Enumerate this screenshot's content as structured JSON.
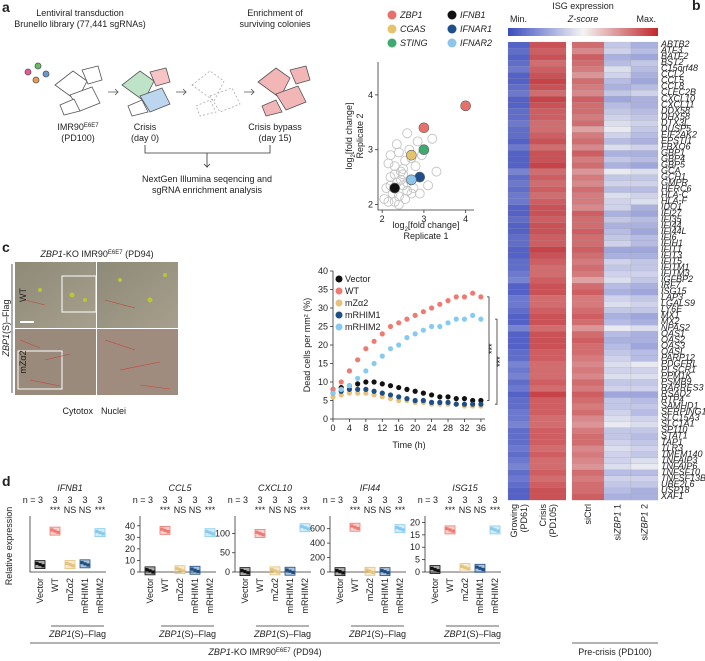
{
  "panel_labels": [
    "a",
    "b",
    "c",
    "d"
  ],
  "a": {
    "left_title": [
      "Lentiviral transduction",
      "Brunello library (77,441 sgRNAs)"
    ],
    "right_title": [
      "Enrichment of",
      "surviving colonies"
    ],
    "stages": [
      [
        [
          {
            "t": "IMR90"
          },
          {
            "t": "E6E7",
            "s": "sup"
          }
        ],
        [
          {
            "t": "(PD100)"
          }
        ]
      ],
      [
        [
          {
            "t": "Crisis"
          }
        ],
        [
          {
            "t": "(day 0)"
          }
        ]
      ],
      [
        [
          {
            "t": "Crisis bypass"
          }
        ],
        [
          {
            "t": "(day 15)"
          }
        ]
      ]
    ],
    "bottom_text": [
      "NextGen Illumina seqencing and",
      "sgRNA enrichment analysis"
    ],
    "scatter": {
      "type": "scatter",
      "xlabel": [
        [
          {
            "t": "log"
          },
          {
            "t": "2",
            "s": "sub"
          },
          {
            "t": "[fold change]"
          }
        ],
        [
          {
            "t": "Replicate 1"
          }
        ]
      ],
      "ylabel": [
        [
          {
            "t": "log"
          },
          {
            "t": "2",
            "s": "sub"
          },
          {
            "t": "[fold change]"
          }
        ],
        [
          {
            "t": "Replicate 2"
          }
        ]
      ],
      "xlim": [
        1.9,
        4.2
      ],
      "ylim": [
        1.9,
        4.6
      ],
      "xticks": [
        2,
        3,
        4
      ],
      "yticks": [
        2,
        3,
        4
      ],
      "background": {
        "color": "#c4c4c4",
        "x": [
          2.05,
          2.1,
          2.15,
          2.2,
          2.25,
          2.3,
          2.35,
          2.4,
          2.45,
          2.5,
          2.55,
          2.6,
          2.2,
          2.3,
          2.4,
          2.5,
          2.6,
          2.7,
          2.8,
          2.15,
          2.35,
          2.45,
          2.55,
          2.65,
          2.75,
          2.3,
          2.5,
          2.7,
          2.9,
          3.1,
          3.2,
          2.6,
          2.4,
          2.2,
          3.3,
          2.85,
          2.95
        ],
        "values": [
          2.1,
          2.3,
          2.05,
          2.5,
          2.2,
          2.7,
          2.4,
          2.15,
          2.6,
          2.35,
          2.8,
          2.25,
          2.9,
          2.05,
          2.95,
          2.55,
          2.4,
          2.2,
          2.7,
          2.75,
          3.1,
          2.45,
          2.1,
          3.0,
          2.3,
          2.55,
          2.65,
          2.85,
          2.2,
          2.35,
          3.2,
          3.3,
          2.0,
          2.35,
          2.6,
          3.15,
          2.9
        ]
      },
      "series": [
        {
          "name": "ZBP1",
          "color": "#e8706a",
          "x": [
            3.0,
            4.0
          ],
          "values": [
            3.4,
            3.8
          ]
        },
        {
          "name": "CGAS",
          "color": "#e6c36a",
          "x": [
            2.7
          ],
          "values": [
            2.9
          ]
        },
        {
          "name": "STING",
          "color": "#3daa6e",
          "x": [
            3.0
          ],
          "values": [
            3.0
          ]
        },
        {
          "name": "IFNB1",
          "color": "#111111",
          "x": [
            2.3
          ],
          "values": [
            2.3
          ]
        },
        {
          "name": "IFNAR1",
          "color": "#1f4e8c",
          "x": [
            2.9
          ],
          "values": [
            2.5
          ]
        },
        {
          "name": "IFNAR2",
          "color": "#8cc4ea",
          "x": [
            2.7
          ],
          "values": [
            2.45
          ]
        }
      ]
    }
  },
  "b": {
    "title": "ISG  expression",
    "scale_labels": [
      "Min.",
      "Z-score",
      "Max."
    ],
    "zlim": [
      -1.5,
      1.5
    ],
    "colors": [
      "#3b4cc0",
      "#f4f4f4",
      "#c0282d"
    ],
    "columns": [
      [
        [
          {
            "t": "Growing"
          }
        ],
        [
          {
            "t": "(PD61)"
          }
        ]
      ],
      [
        [
          {
            "t": "Crisis"
          }
        ],
        [
          {
            "t": "(PD105)"
          }
        ]
      ],
      [
        [
          {
            "t": "siCtrl"
          }
        ]
      ],
      [
        [
          {
            "t": "si"
          },
          {
            "t": "ZBP1",
            "s": "i"
          },
          {
            "t": " 1"
          }
        ]
      ],
      [
        [
          {
            "t": "si"
          },
          {
            "t": "ZBP1",
            "s": "i"
          },
          {
            "t": " 2"
          }
        ]
      ]
    ],
    "group_label": "Pre-crisis (PD100)",
    "genes": [
      "ABTB2",
      "ATF3",
      "BATF2",
      "BST2",
      "C15orf48",
      "CCL2",
      "CCL5",
      "CCL8",
      "CLEC2B",
      "CXCL10",
      "CXCL11",
      "DDX58",
      "DHX58",
      "DTX3L",
      "DUSP5",
      "EIF2AK2",
      "EPSTI1",
      "FBXO6",
      "GBP1",
      "GBP4",
      "GBP5",
      "GCA",
      "GCH1",
      "GMPR",
      "HERC6",
      "HLA-C",
      "HLA-F",
      "IDO1",
      "IFI27",
      "IFI35",
      "IFI44",
      "IFI44L",
      "IFI6",
      "IFIH1",
      "IFIT1",
      "IFIT3",
      "IFIT5",
      "IFITM1",
      "IFITM3",
      "IGFBP2",
      "IRF7",
      "ISG15",
      "LAP3",
      "LGALS9",
      "LY6E",
      "MX1",
      "MX2",
      "NPAS2",
      "OAS1",
      "OAS2",
      "OAS3",
      "OASL",
      "PARP12",
      "PDGFRL",
      "PLSCR1",
      "PPM1K",
      "PSMB9",
      "RARRES3",
      "RSAD2",
      "RTP4",
      "SAMHD1",
      "SERPING1",
      "SLC15A3",
      "SLC1A1",
      "SP110",
      "STAT1",
      "TAP1",
      "TLR3",
      "TMEM140",
      "TNFAIP3",
      "TNFAIP6",
      "TNFSF10",
      "TNFSF13B",
      "UBE2L6",
      "USP18",
      "XAF1"
    ],
    "values": [
      [
        -1.3,
        1.2,
        1.0,
        -0.4,
        -0.6
      ],
      [
        -1.2,
        1.1,
        0.8,
        -0.3,
        -0.5
      ],
      [
        -1.3,
        1.2,
        1.1,
        -0.6,
        -0.7
      ],
      [
        -1.2,
        1.0,
        1.0,
        -0.5,
        -0.4
      ],
      [
        -1.1,
        1.1,
        0.9,
        -0.2,
        -0.5
      ],
      [
        -1.3,
        1.2,
        0.7,
        -0.3,
        -0.6
      ],
      [
        -1.3,
        1.3,
        1.0,
        -0.5,
        -0.7
      ],
      [
        -1.2,
        1.2,
        0.9,
        -0.6,
        -0.5
      ],
      [
        -1.1,
        1.0,
        0.8,
        -0.4,
        -0.3
      ],
      [
        -1.3,
        1.3,
        1.1,
        -0.7,
        -0.6
      ],
      [
        -1.3,
        1.2,
        1.0,
        -0.5,
        -0.6
      ],
      [
        -1.2,
        1.1,
        1.0,
        -0.4,
        -0.5
      ],
      [
        -1.2,
        1.1,
        0.9,
        -0.3,
        -0.4
      ],
      [
        -1.1,
        1.0,
        1.0,
        -0.2,
        -0.3
      ],
      [
        -1.2,
        1.0,
        0.6,
        -0.1,
        -0.4
      ],
      [
        -1.2,
        1.1,
        0.9,
        -0.3,
        -0.5
      ],
      [
        -1.3,
        1.2,
        1.0,
        -0.5,
        -0.6
      ],
      [
        -1.1,
        1.0,
        0.8,
        -0.2,
        -0.3
      ],
      [
        -1.3,
        1.2,
        1.1,
        -0.6,
        -0.6
      ],
      [
        -1.3,
        1.2,
        0.9,
        -0.4,
        -0.5
      ],
      [
        -1.3,
        1.3,
        1.0,
        -0.6,
        -0.7
      ],
      [
        -1.0,
        1.0,
        0.7,
        -0.1,
        -0.2
      ],
      [
        -1.2,
        1.1,
        0.9,
        -0.4,
        -0.4
      ],
      [
        -1.1,
        1.0,
        0.8,
        -0.3,
        -0.3
      ],
      [
        -1.2,
        1.1,
        1.0,
        -0.5,
        -0.5
      ],
      [
        -1.1,
        1.0,
        0.9,
        -0.2,
        -0.3
      ],
      [
        -1.1,
        1.1,
        0.9,
        -0.3,
        -0.2
      ],
      [
        -1.3,
        1.2,
        0.8,
        -0.3,
        -0.6
      ],
      [
        -1.3,
        1.2,
        1.1,
        -0.6,
        -0.7
      ],
      [
        -1.2,
        1.1,
        1.0,
        -0.4,
        -0.5
      ],
      [
        -1.3,
        1.2,
        1.0,
        -0.6,
        -0.6
      ],
      [
        -1.3,
        1.2,
        1.1,
        -0.5,
        -0.7
      ],
      [
        -1.2,
        1.1,
        1.0,
        -0.4,
        -0.5
      ],
      [
        -1.2,
        1.1,
        1.0,
        -0.3,
        -0.5
      ],
      [
        -1.3,
        1.3,
        1.1,
        -0.7,
        -0.7
      ],
      [
        -1.3,
        1.2,
        1.0,
        -0.6,
        -0.6
      ],
      [
        -1.2,
        1.1,
        0.9,
        -0.3,
        -0.4
      ],
      [
        -1.2,
        1.0,
        1.0,
        -0.4,
        -0.4
      ],
      [
        -1.1,
        1.0,
        0.9,
        -0.3,
        -0.3
      ],
      [
        -1.0,
        1.1,
        0.6,
        -0.2,
        -0.4
      ],
      [
        -1.3,
        1.2,
        1.0,
        -0.5,
        -0.6
      ],
      [
        -1.3,
        1.2,
        1.1,
        -0.6,
        -0.7
      ],
      [
        -1.1,
        1.0,
        0.9,
        -0.3,
        -0.4
      ],
      [
        -1.1,
        1.0,
        0.9,
        -0.2,
        -0.3
      ],
      [
        -1.2,
        1.1,
        1.0,
        -0.4,
        -0.4
      ],
      [
        -1.3,
        1.2,
        1.1,
        -0.6,
        -0.7
      ],
      [
        -1.3,
        1.2,
        1.0,
        -0.5,
        -0.6
      ],
      [
        -1.0,
        1.0,
        0.7,
        -0.1,
        -0.2
      ],
      [
        -1.3,
        1.2,
        1.0,
        -0.5,
        -0.6
      ],
      [
        -1.3,
        1.2,
        1.1,
        -0.6,
        -0.6
      ],
      [
        -1.3,
        1.2,
        1.0,
        -0.5,
        -0.7
      ],
      [
        -1.2,
        1.1,
        1.0,
        -0.4,
        -0.5
      ],
      [
        -1.2,
        1.1,
        0.9,
        -0.3,
        -0.5
      ],
      [
        -1.0,
        1.0,
        0.8,
        -0.2,
        -0.1
      ],
      [
        -1.1,
        1.0,
        0.9,
        -0.3,
        -0.3
      ],
      [
        -1.0,
        1.0,
        0.8,
        -0.2,
        -0.2
      ],
      [
        -1.2,
        1.1,
        1.0,
        -0.4,
        -0.4
      ],
      [
        -1.1,
        1.0,
        0.9,
        -0.3,
        -0.3
      ],
      [
        -1.3,
        1.3,
        1.1,
        -0.7,
        -0.7
      ],
      [
        -1.2,
        1.1,
        1.0,
        -0.4,
        -0.5
      ],
      [
        -1.2,
        1.1,
        0.9,
        -0.4,
        -0.4
      ],
      [
        -1.1,
        1.1,
        1.0,
        -0.3,
        -0.5
      ],
      [
        -1.1,
        1.0,
        0.8,
        -0.2,
        -0.3
      ],
      [
        -1.0,
        1.0,
        0.7,
        -0.1,
        -0.2
      ],
      [
        -1.2,
        1.1,
        0.9,
        -0.4,
        -0.4
      ],
      [
        -1.2,
        1.1,
        1.0,
        -0.4,
        -0.5
      ],
      [
        -1.2,
        1.1,
        1.0,
        -0.3,
        -0.4
      ],
      [
        -1.1,
        1.0,
        0.8,
        -0.2,
        -0.3
      ],
      [
        -1.2,
        1.1,
        0.9,
        -0.3,
        -0.4
      ],
      [
        -1.1,
        1.0,
        0.8,
        -0.3,
        -0.2
      ],
      [
        -1.0,
        1.0,
        0.7,
        -0.2,
        -0.1
      ],
      [
        -1.2,
        1.1,
        1.0,
        -0.5,
        -0.5
      ],
      [
        -1.1,
        1.0,
        0.9,
        -0.3,
        -0.3
      ],
      [
        -1.2,
        1.1,
        1.0,
        -0.4,
        -0.4
      ],
      [
        -1.3,
        1.2,
        1.0,
        -0.5,
        -0.6
      ],
      [
        -1.3,
        1.2,
        1.1,
        -0.6,
        -0.6
      ]
    ]
  },
  "c": {
    "image_title": [
      {
        "t": "ZBP1",
        "s": "i"
      },
      {
        "t": "-KO IMR90"
      },
      {
        "t": "E6E7",
        "s": "sup"
      },
      {
        "t": " (PD94)"
      }
    ],
    "row_group": [
      {
        "t": "ZBP1",
        "s": "i"
      },
      {
        "t": "(S)–Flag"
      }
    ],
    "rows": [
      "WT",
      "mZα2"
    ],
    "stains": [
      {
        "text": "Cytotox",
        "color": "#3aa043"
      },
      {
        "text": "Nuclei",
        "color": "#d9302c"
      }
    ],
    "chart": {
      "type": "line",
      "xlabel": "Time (h)",
      "ylabel": "Dead cells per mm² (%)",
      "x": [
        0,
        2,
        4,
        6,
        8,
        10,
        12,
        14,
        16,
        18,
        20,
        22,
        24,
        26,
        28,
        30,
        32,
        34,
        36
      ],
      "xlim": [
        0,
        37
      ],
      "ylim": [
        0,
        40
      ],
      "xticks": [
        0,
        4,
        8,
        12,
        16,
        20,
        24,
        28,
        32,
        36
      ],
      "yticks": [
        0,
        5,
        10,
        15,
        20,
        25,
        30,
        35,
        40
      ],
      "significance": [
        "***",
        "***"
      ],
      "series": [
        {
          "name": "Vector",
          "color": "#111111",
          "values": [
            8,
            8.5,
            9,
            9.5,
            10,
            10,
            9.5,
            9,
            8.5,
            8,
            7.5,
            7,
            6.5,
            6,
            6,
            5.5,
            5.5,
            5,
            5
          ]
        },
        {
          "name": "WT",
          "color": "#ef7a72",
          "values": [
            8,
            10,
            13,
            16,
            19,
            21,
            23,
            25,
            26,
            27,
            28,
            29,
            30,
            31,
            32,
            33,
            33,
            34,
            33
          ]
        },
        {
          "name": "mZα2",
          "color": "#e6c27a",
          "values": [
            6,
            6.5,
            7,
            7,
            7,
            6.5,
            6,
            5.5,
            5,
            5,
            4.5,
            4.5,
            4,
            4,
            4,
            4,
            3.5,
            3.5,
            3.5
          ]
        },
        {
          "name": "mRHIM1",
          "color": "#1d4f86",
          "values": [
            7,
            7.5,
            8,
            8,
            8,
            7.5,
            7,
            6.5,
            6,
            5.5,
            5,
            5,
            4.5,
            4.5,
            4.5,
            4,
            4,
            4,
            4
          ]
        },
        {
          "name": "mRHIM2",
          "color": "#86cbef",
          "values": [
            7,
            8,
            9,
            11,
            13,
            15,
            17,
            19,
            20,
            22,
            23,
            24,
            25,
            25,
            26,
            27,
            27,
            28,
            27
          ]
        }
      ]
    }
  },
  "d": {
    "ylabel": "Relative expression",
    "categories": [
      "Vector",
      "WT",
      "mZα2",
      "mRHIM1",
      "mRHIM2"
    ],
    "colors": [
      "#111111",
      "#ef7a72",
      "#e6c27a",
      "#1d4f86",
      "#86cbef"
    ],
    "n_labels": [
      "n = 3",
      "3",
      "3",
      "3",
      "3"
    ],
    "significance": [
      "***",
      "NS",
      "NS",
      "***"
    ],
    "group_label": [
      {
        "t": "ZBP1",
        "s": "i"
      },
      {
        "t": "(S)–Flag"
      }
    ],
    "bottom_label": [
      {
        "t": "ZBP1",
        "s": "i"
      },
      {
        "t": "-KO IMR90"
      },
      {
        "t": "E6E7",
        "s": "sup"
      },
      {
        "t": " (PD94)"
      }
    ],
    "charts": [
      {
        "type": "scatter",
        "title": "IFNB1",
        "values": [
          1,
          5.5,
          1,
          1.1,
          5.3
        ],
        "ylim": [
          0,
          7
        ],
        "yticks": []
      },
      {
        "type": "scatter",
        "title": "CCL5",
        "values": [
          1,
          36,
          2,
          1.5,
          34
        ],
        "ylim": [
          0,
          45
        ],
        "yticks": [
          0,
          10,
          20,
          30,
          40
        ]
      },
      {
        "type": "scatter",
        "title": "CXCL10",
        "values": [
          1,
          100,
          3,
          2,
          115
        ],
        "ylim": [
          0,
          135
        ],
        "yticks": [
          0,
          50,
          100
        ]
      },
      {
        "type": "scatter",
        "title": "IFI44",
        "values": [
          5,
          620,
          10,
          5,
          600
        ],
        "ylim": [
          0,
          720
        ],
        "yticks": [
          0,
          200,
          400,
          600
        ]
      },
      {
        "type": "scatter",
        "title": "ISG15",
        "values": [
          1,
          17,
          1.8,
          1.5,
          17
        ],
        "ylim": [
          0,
          21
        ],
        "yticks": [
          0,
          5,
          10,
          15,
          20
        ]
      }
    ]
  }
}
